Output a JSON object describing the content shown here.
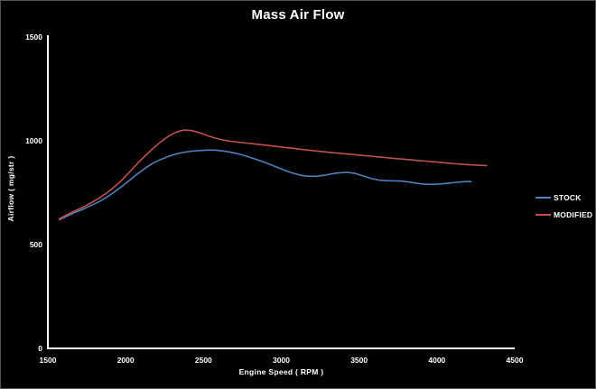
{
  "window": {
    "background": "#000000",
    "border_color": "#545454",
    "text_color": "#ffffff",
    "axis_color": "#ffffff"
  },
  "chart_data": {
    "type": "line",
    "title": "Mass Air Flow",
    "xlabel": "Engine Speed ( RPM )",
    "ylabel": "Airflow ( mg/str )",
    "xlim": [
      1500,
      4500
    ],
    "ylim": [
      0,
      1500
    ],
    "x_ticks": [
      1500,
      2000,
      2500,
      3000,
      3500,
      4000,
      4500
    ],
    "y_ticks": [
      0,
      500,
      1000,
      1500
    ],
    "grid": false,
    "legend_position": "middle-right",
    "series": [
      {
        "name": "STOCK",
        "color": "#4F81BD",
        "points": [
          [
            1575,
            620
          ],
          [
            1625,
            638
          ],
          [
            1675,
            655
          ],
          [
            1725,
            670
          ],
          [
            1775,
            688
          ],
          [
            1825,
            705
          ],
          [
            1875,
            727
          ],
          [
            1925,
            752
          ],
          [
            1975,
            780
          ],
          [
            2025,
            810
          ],
          [
            2075,
            840
          ],
          [
            2125,
            868
          ],
          [
            2175,
            892
          ],
          [
            2225,
            910
          ],
          [
            2275,
            925
          ],
          [
            2325,
            937
          ],
          [
            2375,
            945
          ],
          [
            2425,
            950
          ],
          [
            2475,
            953
          ],
          [
            2525,
            955
          ],
          [
            2575,
            955
          ],
          [
            2625,
            951
          ],
          [
            2675,
            945
          ],
          [
            2725,
            937
          ],
          [
            2775,
            926
          ],
          [
            2825,
            914
          ],
          [
            2875,
            901
          ],
          [
            2925,
            887
          ],
          [
            2975,
            872
          ],
          [
            3025,
            857
          ],
          [
            3075,
            844
          ],
          [
            3125,
            834
          ],
          [
            3175,
            829
          ],
          [
            3225,
            829
          ],
          [
            3275,
            834
          ],
          [
            3325,
            841
          ],
          [
            3375,
            846
          ],
          [
            3425,
            848
          ],
          [
            3475,
            843
          ],
          [
            3525,
            831
          ],
          [
            3575,
            819
          ],
          [
            3625,
            811
          ],
          [
            3675,
            808
          ],
          [
            3725,
            807
          ],
          [
            3775,
            806
          ],
          [
            3825,
            801
          ],
          [
            3875,
            795
          ],
          [
            3925,
            791
          ],
          [
            3975,
            790
          ],
          [
            4025,
            792
          ],
          [
            4075,
            796
          ],
          [
            4125,
            800
          ],
          [
            4175,
            803
          ],
          [
            4220,
            804
          ]
        ]
      },
      {
        "name": "MODIFIED",
        "color": "#C0504D",
        "points": [
          [
            1575,
            624
          ],
          [
            1625,
            645
          ],
          [
            1675,
            663
          ],
          [
            1725,
            680
          ],
          [
            1775,
            700
          ],
          [
            1825,
            722
          ],
          [
            1875,
            747
          ],
          [
            1925,
            776
          ],
          [
            1975,
            810
          ],
          [
            2025,
            850
          ],
          [
            2075,
            890
          ],
          [
            2125,
            928
          ],
          [
            2175,
            962
          ],
          [
            2225,
            995
          ],
          [
            2275,
            1022
          ],
          [
            2325,
            1042
          ],
          [
            2375,
            1052
          ],
          [
            2425,
            1049
          ],
          [
            2475,
            1039
          ],
          [
            2525,
            1025
          ],
          [
            2575,
            1013
          ],
          [
            2625,
            1004
          ],
          [
            2675,
            998
          ],
          [
            2725,
            993
          ],
          [
            2775,
            989
          ],
          [
            2825,
            985
          ],
          [
            2875,
            981
          ],
          [
            2925,
            977
          ],
          [
            2975,
            972
          ],
          [
            3025,
            968
          ],
          [
            3075,
            964
          ],
          [
            3125,
            959
          ],
          [
            3175,
            955
          ],
          [
            3225,
            951
          ],
          [
            3275,
            947
          ],
          [
            3325,
            943
          ],
          [
            3375,
            940
          ],
          [
            3425,
            936
          ],
          [
            3475,
            933
          ],
          [
            3525,
            929
          ],
          [
            3575,
            926
          ],
          [
            3625,
            922
          ],
          [
            3675,
            919
          ],
          [
            3725,
            915
          ],
          [
            3775,
            912
          ],
          [
            3825,
            909
          ],
          [
            3875,
            905
          ],
          [
            3925,
            902
          ],
          [
            3975,
            899
          ],
          [
            4025,
            896
          ],
          [
            4075,
            892
          ],
          [
            4125,
            889
          ],
          [
            4175,
            886
          ],
          [
            4225,
            884
          ],
          [
            4275,
            882
          ],
          [
            4320,
            880
          ]
        ]
      }
    ]
  }
}
